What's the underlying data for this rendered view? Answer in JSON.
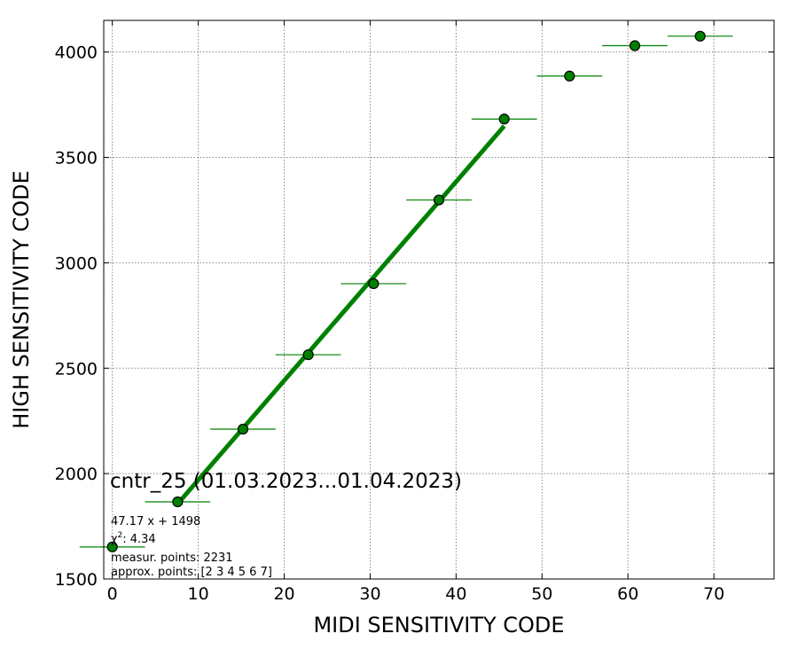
{
  "chart_data": {
    "type": "scatter",
    "xlabel": "MIDI SENSITIVITY CODE",
    "ylabel": "HIGH SENSITIVITY CODE",
    "xlim": [
      -1,
      77
    ],
    "ylim": [
      1500,
      4150
    ],
    "xticks": [
      0,
      10,
      20,
      30,
      40,
      50,
      60,
      70
    ],
    "yticks": [
      1500,
      2000,
      2500,
      3000,
      3500,
      4000
    ],
    "grid": true,
    "colors": {
      "points": "#008000",
      "fit_line": "#008000",
      "error_bars": "#008000",
      "grid": "#888888"
    },
    "points": [
      {
        "x": 0.0,
        "y": 1652,
        "xerr": 3.8
      },
      {
        "x": 7.6,
        "y": 1866,
        "xerr": 3.8
      },
      {
        "x": 15.2,
        "y": 2211,
        "xerr": 3.8
      },
      {
        "x": 22.8,
        "y": 2564,
        "xerr": 3.8
      },
      {
        "x": 30.4,
        "y": 2901,
        "xerr": 3.8
      },
      {
        "x": 38.0,
        "y": 3298,
        "xerr": 3.8
      },
      {
        "x": 45.6,
        "y": 3682,
        "xerr": 3.8
      },
      {
        "x": 53.2,
        "y": 3886,
        "xerr": 3.8
      },
      {
        "x": 60.8,
        "y": 4030,
        "xerr": 3.8
      },
      {
        "x": 68.4,
        "y": 4075,
        "xerr": 3.8
      }
    ],
    "fit": {
      "slope": 47.17,
      "intercept": 1498,
      "x_range": [
        7.6,
        45.6
      ]
    },
    "annotations": {
      "title": "cntr_25 (01.03.2023...01.04.2023)",
      "equation": "47.17 x + 1498",
      "chi2_symbol": "χ",
      "chi2_value": ": 4.34",
      "measur_points": "measur. points: 2231",
      "approx_points": "approx. points: [2 3 4 5 6 7]"
    }
  }
}
